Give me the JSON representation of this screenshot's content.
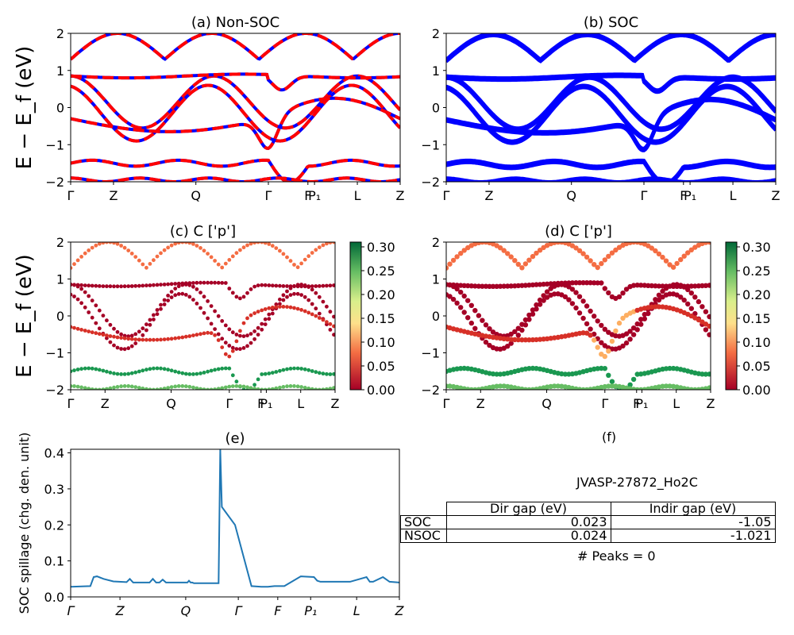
{
  "chart_data": [
    {
      "id": "a",
      "type": "line",
      "title": "(a) Non-SOC",
      "ylabel": "E − E_f (eV)",
      "ylim": [
        -2,
        2
      ],
      "yticks": [
        -2,
        -1,
        0,
        1,
        2
      ],
      "xticklabels": [
        "Γ",
        "Z",
        "Q",
        "Γ",
        "F",
        "P₁",
        "L",
        "Z"
      ],
      "series": [
        {
          "style": "blue solid, red dashed overlay",
          "values": [
            [
              0,
              1.25
            ],
            [
              0.04,
              1.32
            ],
            [
              0.09,
              1.6
            ],
            [
              0.14,
              2.0
            ]
          ]
        }
      ]
    },
    {
      "id": "b",
      "type": "line",
      "title": "(b) SOC",
      "ylim": [
        -2,
        2
      ],
      "yticks": [
        -2,
        -1,
        0,
        1,
        2
      ],
      "xticklabels": [
        "Γ",
        "Z",
        "Q",
        "Γ",
        "F",
        "P₁",
        "L",
        "Z"
      ]
    },
    {
      "id": "c",
      "type": "scatter",
      "title": "(c)  C ['p']",
      "ylabel": "E − E_f (eV)",
      "ylim": [
        -2,
        2
      ],
      "yticks": [
        -2,
        -1,
        0,
        1,
        2
      ],
      "xticklabels": [
        "Γ",
        "Z",
        "Q",
        "Γ",
        "F",
        "P₁",
        "L",
        "Z"
      ],
      "colorbar": {
        "ticks": [
          "0.30",
          "0.25",
          "0.20",
          "0.15",
          "0.10",
          "0.05",
          "0.00"
        ],
        "range": [
          0,
          0.31
        ]
      }
    },
    {
      "id": "d",
      "type": "scatter",
      "title": "(d) C ['p']",
      "ylim": [
        -2,
        2
      ],
      "yticks": [
        -2,
        -1,
        0,
        1,
        2
      ],
      "xticklabels": [
        "Γ",
        "Z",
        "Q",
        "Γ",
        "F",
        "P₁",
        "L",
        "Z"
      ],
      "colorbar": {
        "ticks": [
          "0.30",
          "0.25",
          "0.20",
          "0.15",
          "0.10",
          "0.05",
          "0.00"
        ],
        "range": [
          0,
          0.31
        ]
      }
    },
    {
      "id": "e",
      "type": "line",
      "title": "(e)",
      "ylabel": "SOC spillage (chg. den. unit)",
      "ylim": [
        0,
        0.41
      ],
      "yticks": [
        "0.0",
        "0.1",
        "0.2",
        "0.3",
        "0.4"
      ],
      "xticklabels": [
        "Γ",
        "Z",
        "Q",
        "Γ",
        "F",
        "P₁",
        "L",
        "Z"
      ],
      "x": [
        0,
        0.06,
        0.07,
        0.08,
        0.1,
        0.13,
        0.17,
        0.18,
        0.19,
        0.2,
        0.24,
        0.25,
        0.26,
        0.27,
        0.28,
        0.29,
        0.3,
        0.31,
        0.35,
        0.355,
        0.36,
        0.365,
        0.37,
        0.375,
        0.38,
        0.4,
        0.45,
        0.455,
        0.46,
        0.5,
        0.55,
        0.58,
        0.6,
        0.62,
        0.65,
        0.7,
        0.74,
        0.75,
        0.76,
        0.77,
        0.78,
        0.79,
        0.8,
        0.83,
        0.85,
        0.9,
        0.91,
        0.92,
        0.95,
        0.97,
        1.0
      ],
      "values": [
        0.028,
        0.03,
        0.055,
        0.057,
        0.05,
        0.043,
        0.041,
        0.05,
        0.04,
        0.04,
        0.04,
        0.05,
        0.04,
        0.04,
        0.048,
        0.04,
        0.04,
        0.04,
        0.04,
        0.04,
        0.045,
        0.04,
        0.04,
        0.038,
        0.038,
        0.038,
        0.038,
        0.41,
        0.25,
        0.2,
        0.03,
        0.028,
        0.028,
        0.03,
        0.03,
        0.057,
        0.055,
        0.045,
        0.042,
        0.042,
        0.042,
        0.042,
        0.042,
        0.042,
        0.042,
        0.055,
        0.042,
        0.042,
        0.055,
        0.042,
        0.04
      ]
    }
  ],
  "panel_f": {
    "title": "(f)",
    "id_label": "JVASP-27872_Ho2C",
    "table": {
      "header": [
        "Dir gap (eV)",
        "Indir gap (eV)"
      ],
      "rows": [
        {
          "label": "SOC",
          "dir": "0.023",
          "indir": "-1.05"
        },
        {
          "label": "NSOC",
          "dir": "0.024",
          "indir": "-1.021"
        }
      ]
    },
    "peaks": "# Peaks = 0"
  }
}
